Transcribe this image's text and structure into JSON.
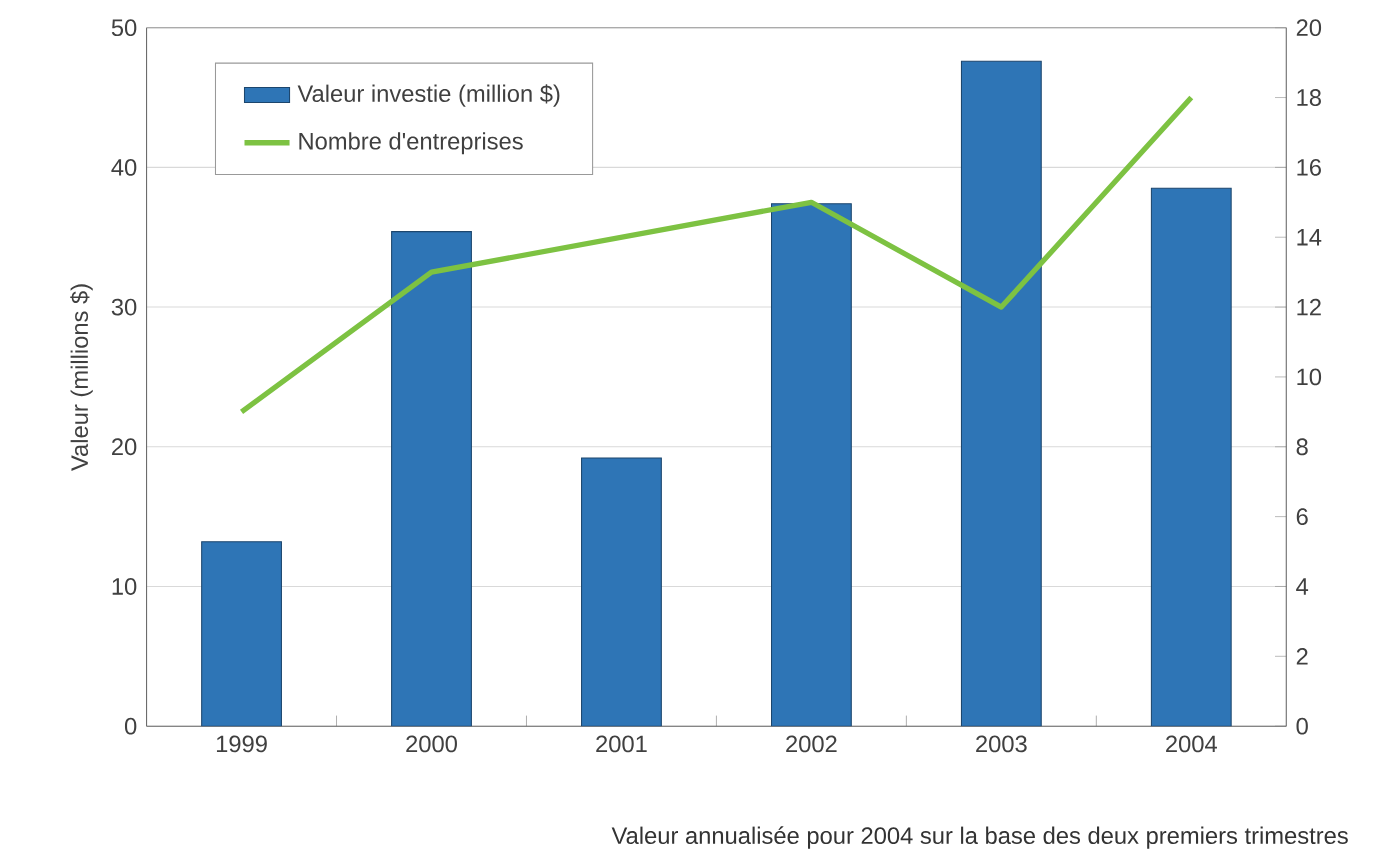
{
  "chart_data": {
    "type": "bar",
    "categories": [
      "1999",
      "2000",
      "2001",
      "2002",
      "2003",
      "2004"
    ],
    "series": [
      {
        "name": "Valeur investie (million $)",
        "color": "#2e75b6",
        "values": [
          13.2,
          35.4,
          19.2,
          37.4,
          47.6,
          38.5
        ]
      },
      {
        "name": "Nombre d'entreprises",
        "type": "line",
        "axis": "y2",
        "color": "#7dc242",
        "values": [
          9,
          13,
          14,
          15,
          12,
          18
        ]
      }
    ],
    "ylabel": "Valeur (millions $)",
    "ylim": [
      0,
      50
    ],
    "yticks": [
      0,
      10,
      20,
      30,
      40,
      50
    ],
    "y2lim": [
      0,
      20
    ],
    "y2ticks": [
      0,
      2,
      4,
      6,
      8,
      10,
      12,
      14,
      16,
      18,
      20
    ],
    "grid": "y",
    "legend": "top left",
    "annotations": [
      "Valeur annualisée pour 2004 sur la base des deux premiers trimestres"
    ]
  }
}
